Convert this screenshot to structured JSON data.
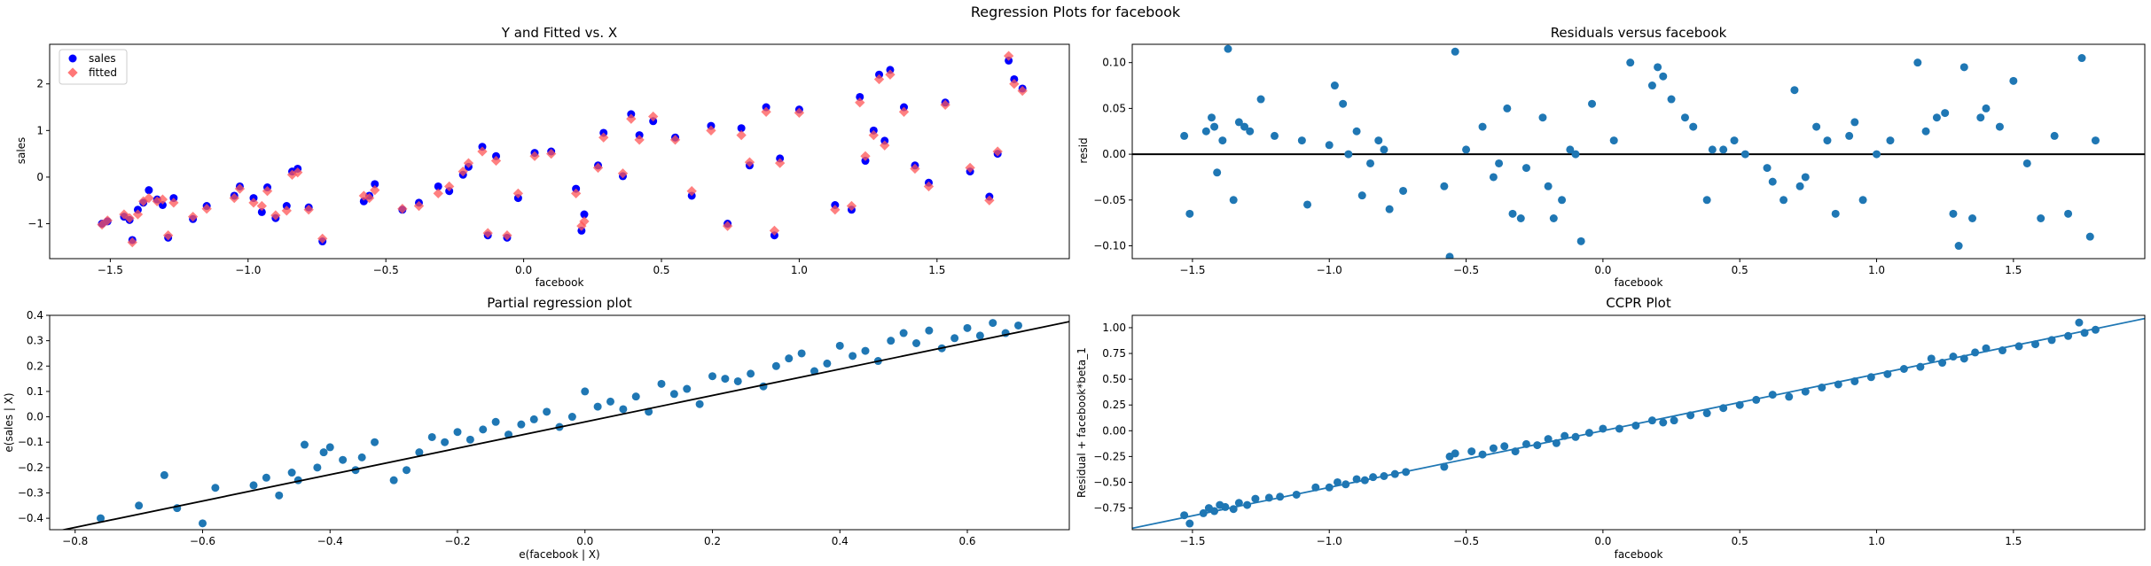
{
  "figure": {
    "suptitle": "Regression Plots for facebook",
    "colors": {
      "sales": "#0000ff",
      "fitted": "#ff5555",
      "points": "#1f77b4",
      "line_ccpr": "#1f77b4",
      "line_partial": "#000000",
      "hline": "#000000"
    }
  },
  "chart_data": [
    {
      "id": "fitted",
      "type": "scatter",
      "title": "Y and Fitted vs. X",
      "xlabel": "facebook",
      "ylabel": "sales",
      "xlim": [
        -1.72,
        1.98
      ],
      "ylim": [
        -1.75,
        2.85
      ],
      "xticks": [
        -1.5,
        -1.0,
        -0.5,
        0.0,
        0.5,
        1.0,
        1.5
      ],
      "xtick_labels": [
        "−1.5",
        "−1.0",
        "−0.5",
        "0.0",
        "0.5",
        "1.0",
        "1.5"
      ],
      "yticks": [
        -1,
        0,
        1,
        2
      ],
      "ytick_labels": [
        "−1",
        "0",
        "1",
        "2"
      ],
      "legend": {
        "placement": "upper-left",
        "entries": [
          "sales",
          "fitted"
        ]
      },
      "x": [
        -1.53,
        -1.51,
        -1.45,
        -1.43,
        -1.42,
        -1.4,
        -1.38,
        -1.36,
        -1.33,
        -1.31,
        -1.29,
        -1.27,
        -1.2,
        -1.15,
        -1.05,
        -1.03,
        -0.98,
        -0.95,
        -0.93,
        -0.9,
        -0.86,
        -0.84,
        -0.82,
        -0.78,
        -0.73,
        -0.58,
        -0.56,
        -0.54,
        -0.44,
        -0.38,
        -0.31,
        -0.27,
        -0.22,
        -0.2,
        -0.15,
        -0.13,
        -0.1,
        -0.06,
        -0.02,
        0.04,
        0.1,
        0.19,
        0.21,
        0.22,
        0.27,
        0.29,
        0.36,
        0.39,
        0.42,
        0.47,
        0.55,
        0.61,
        0.68,
        0.74,
        0.79,
        0.82,
        0.88,
        0.91,
        0.93,
        1.0,
        1.13,
        1.19,
        1.22,
        1.24,
        1.27,
        1.29,
        1.31,
        1.33,
        1.38,
        1.42,
        1.47,
        1.53,
        1.62,
        1.69,
        1.72,
        1.76,
        1.78,
        1.81
      ],
      "series": [
        {
          "name": "sales",
          "values": [
            -1.0,
            -0.95,
            -0.85,
            -0.92,
            -1.35,
            -0.7,
            -0.55,
            -0.28,
            -0.48,
            -0.6,
            -1.3,
            -0.45,
            -0.9,
            -0.62,
            -0.4,
            -0.2,
            -0.45,
            -0.75,
            -0.22,
            -0.88,
            -0.62,
            0.12,
            0.18,
            -0.65,
            -1.38,
            -0.52,
            -0.4,
            -0.15,
            -0.7,
            -0.55,
            -0.2,
            -0.3,
            0.05,
            0.22,
            0.65,
            -1.25,
            0.45,
            -1.3,
            -0.45,
            0.52,
            0.55,
            -0.25,
            -1.15,
            -0.8,
            0.25,
            0.95,
            0.02,
            1.35,
            0.9,
            1.2,
            0.85,
            -0.4,
            1.1,
            -1.0,
            1.05,
            0.25,
            1.5,
            -1.25,
            0.4,
            1.45,
            -0.6,
            -0.7,
            1.72,
            0.35,
            1.0,
            2.2,
            0.78,
            2.3,
            1.5,
            0.25,
            -0.12,
            1.6,
            0.12,
            -0.42,
            0.5,
            2.5,
            2.1,
            1.9
          ]
        },
        {
          "name": "fitted",
          "values": [
            -1.02,
            -0.93,
            -0.8,
            -0.88,
            -1.4,
            -0.8,
            -0.52,
            -0.45,
            -0.52,
            -0.48,
            -1.25,
            -0.55,
            -0.85,
            -0.68,
            -0.45,
            -0.25,
            -0.55,
            -0.62,
            -0.3,
            -0.82,
            -0.72,
            0.05,
            0.1,
            -0.7,
            -1.32,
            -0.4,
            -0.45,
            -0.28,
            -0.68,
            -0.62,
            -0.35,
            -0.2,
            0.12,
            0.3,
            0.55,
            -1.2,
            0.35,
            -1.25,
            -0.35,
            0.45,
            0.5,
            -0.35,
            -1.05,
            -0.95,
            0.2,
            0.85,
            0.08,
            1.25,
            0.8,
            1.3,
            0.8,
            -0.3,
            1.0,
            -1.05,
            0.9,
            0.32,
            1.4,
            -1.15,
            0.3,
            1.38,
            -0.7,
            -0.62,
            1.6,
            0.45,
            0.9,
            2.1,
            0.68,
            2.2,
            1.4,
            0.18,
            -0.2,
            1.55,
            0.2,
            -0.5,
            0.55,
            2.6,
            2.0,
            1.85
          ]
        }
      ]
    },
    {
      "id": "resid",
      "type": "scatter",
      "title": "Residuals versus facebook",
      "xlabel": "facebook",
      "ylabel": "resid",
      "xlim": [
        -1.72,
        1.98
      ],
      "ylim": [
        -0.114,
        0.12
      ],
      "xticks": [
        -1.5,
        -1.0,
        -0.5,
        0.0,
        0.5,
        1.0,
        1.5
      ],
      "xtick_labels": [
        "−1.5",
        "−1.0",
        "−0.5",
        "0.0",
        "0.5",
        "1.0",
        "1.5"
      ],
      "yticks": [
        -0.1,
        -0.05,
        0.0,
        0.05,
        0.1
      ],
      "ytick_labels": [
        "−0.10",
        "−0.05",
        "0.00",
        "0.05",
        "0.10"
      ],
      "hline": 0.0,
      "x": [
        -1.53,
        -1.51,
        -1.45,
        -1.43,
        -1.42,
        -1.41,
        -1.39,
        -1.37,
        -1.35,
        -1.33,
        -1.31,
        -1.29,
        -1.25,
        -1.2,
        -1.1,
        -1.08,
        -1.0,
        -0.98,
        -0.95,
        -0.93,
        -0.9,
        -0.88,
        -0.85,
        -0.82,
        -0.8,
        -0.78,
        -0.73,
        -0.58,
        -0.56,
        -0.54,
        -0.5,
        -0.44,
        -0.4,
        -0.38,
        -0.35,
        -0.33,
        -0.3,
        -0.28,
        -0.22,
        -0.2,
        -0.18,
        -0.15,
        -0.12,
        -0.1,
        -0.08,
        -0.04,
        0.04,
        0.1,
        0.18,
        0.2,
        0.22,
        0.25,
        0.3,
        0.33,
        0.38,
        0.4,
        0.44,
        0.48,
        0.52,
        0.6,
        0.62,
        0.66,
        0.7,
        0.72,
        0.74,
        0.78,
        0.82,
        0.85,
        0.9,
        0.92,
        0.95,
        1.0,
        1.05,
        1.15,
        1.18,
        1.22,
        1.25,
        1.28,
        1.3,
        1.32,
        1.35,
        1.38,
        1.4,
        1.45,
        1.5,
        1.55,
        1.6,
        1.65,
        1.7,
        1.75,
        1.78,
        1.8
      ],
      "y": [
        0.02,
        -0.065,
        0.025,
        0.04,
        0.03,
        -0.02,
        0.015,
        0.115,
        -0.05,
        0.035,
        0.03,
        0.025,
        0.06,
        0.02,
        0.015,
        -0.055,
        0.01,
        0.075,
        0.055,
        0.0,
        0.025,
        -0.045,
        -0.01,
        0.015,
        0.005,
        -0.06,
        -0.04,
        -0.035,
        -0.112,
        0.112,
        0.005,
        0.03,
        -0.025,
        -0.01,
        0.05,
        -0.065,
        -0.07,
        -0.015,
        0.04,
        -0.035,
        -0.07,
        -0.05,
        0.005,
        0.0,
        -0.095,
        0.055,
        0.015,
        0.1,
        0.075,
        0.095,
        0.085,
        0.06,
        0.04,
        0.03,
        -0.05,
        0.005,
        0.005,
        0.015,
        0.0,
        -0.015,
        -0.03,
        -0.05,
        0.07,
        -0.035,
        -0.025,
        0.03,
        0.015,
        -0.065,
        0.02,
        0.035,
        -0.05,
        0.0,
        0.015,
        0.1,
        0.025,
        0.04,
        0.045,
        -0.065,
        -0.1,
        0.095,
        -0.07,
        0.04,
        0.05,
        0.03,
        0.08,
        -0.01,
        -0.07,
        0.02,
        -0.065,
        0.105,
        -0.09,
        0.015
      ]
    },
    {
      "id": "partial",
      "type": "scatter",
      "title": "Partial regression plot",
      "xlabel": "e(facebook | X)",
      "ylabel": "e(sales | X)",
      "xlim": [
        -0.84,
        0.76
      ],
      "ylim": [
        -0.445,
        0.4
      ],
      "xticks": [
        -0.8,
        -0.6,
        -0.4,
        -0.2,
        0.0,
        0.2,
        0.4,
        0.6
      ],
      "xtick_labels": [
        "−0.8",
        "−0.6",
        "−0.4",
        "−0.2",
        "0.0",
        "0.2",
        "0.4",
        "0.6"
      ],
      "yticks": [
        -0.4,
        -0.3,
        -0.2,
        -0.1,
        0.0,
        0.1,
        0.2,
        0.3,
        0.4
      ],
      "ytick_labels": [
        "−0.4",
        "−0.3",
        "−0.2",
        "−0.1",
        "0.0",
        "0.1",
        "0.2",
        "0.3",
        "0.4"
      ],
      "fit_line": {
        "slope": 0.52,
        "intercept": -0.02
      },
      "x": [
        -0.76,
        -0.7,
        -0.66,
        -0.64,
        -0.6,
        -0.58,
        -0.52,
        -0.5,
        -0.48,
        -0.46,
        -0.45,
        -0.44,
        -0.42,
        -0.41,
        -0.4,
        -0.38,
        -0.36,
        -0.35,
        -0.33,
        -0.3,
        -0.28,
        -0.26,
        -0.24,
        -0.22,
        -0.2,
        -0.18,
        -0.16,
        -0.14,
        -0.12,
        -0.1,
        -0.08,
        -0.06,
        -0.04,
        -0.02,
        0.0,
        0.02,
        0.04,
        0.06,
        0.08,
        0.1,
        0.12,
        0.14,
        0.16,
        0.18,
        0.2,
        0.22,
        0.24,
        0.26,
        0.28,
        0.3,
        0.32,
        0.34,
        0.36,
        0.38,
        0.4,
        0.42,
        0.44,
        0.46,
        0.48,
        0.5,
        0.52,
        0.54,
        0.56,
        0.58,
        0.6,
        0.62,
        0.64,
        0.66,
        0.68
      ],
      "y": [
        -0.4,
        -0.35,
        -0.23,
        -0.36,
        -0.42,
        -0.28,
        -0.27,
        -0.24,
        -0.31,
        -0.22,
        -0.25,
        -0.11,
        -0.2,
        -0.14,
        -0.12,
        -0.17,
        -0.21,
        -0.16,
        -0.1,
        -0.25,
        -0.21,
        -0.14,
        -0.08,
        -0.1,
        -0.06,
        -0.09,
        -0.05,
        -0.02,
        -0.07,
        -0.03,
        -0.01,
        0.02,
        -0.04,
        0.0,
        0.1,
        0.04,
        0.06,
        0.03,
        0.08,
        0.02,
        0.13,
        0.09,
        0.11,
        0.05,
        0.16,
        0.15,
        0.14,
        0.17,
        0.12,
        0.2,
        0.23,
        0.25,
        0.18,
        0.21,
        0.28,
        0.24,
        0.26,
        0.22,
        0.3,
        0.33,
        0.29,
        0.34,
        0.27,
        0.31,
        0.35,
        0.32,
        0.37,
        0.33,
        0.36
      ]
    },
    {
      "id": "ccpr",
      "type": "scatter",
      "title": "CCPR Plot",
      "xlabel": "facebook",
      "ylabel": "Residual + facebook*beta_1",
      "xlim": [
        -1.72,
        1.98
      ],
      "ylim": [
        -0.96,
        1.12
      ],
      "xticks": [
        -1.5,
        -1.0,
        -0.5,
        0.0,
        0.5,
        1.0,
        1.5
      ],
      "xtick_labels": [
        "−1.5",
        "−1.0",
        "−0.5",
        "0.0",
        "0.5",
        "1.0",
        "1.5"
      ],
      "yticks": [
        -0.75,
        -0.5,
        -0.25,
        0.0,
        0.25,
        0.5,
        0.75,
        1.0
      ],
      "ytick_labels": [
        "−0.75",
        "−0.50",
        "−0.25",
        "0.00",
        "0.25",
        "0.50",
        "0.75",
        "1.00"
      ],
      "fit_line": {
        "slope": 0.55,
        "intercept": 0.0
      },
      "x": [
        -1.53,
        -1.51,
        -1.46,
        -1.44,
        -1.42,
        -1.4,
        -1.38,
        -1.35,
        -1.33,
        -1.3,
        -1.27,
        -1.22,
        -1.18,
        -1.12,
        -1.05,
        -1.0,
        -0.97,
        -0.94,
        -0.9,
        -0.87,
        -0.84,
        -0.8,
        -0.76,
        -0.72,
        -0.58,
        -0.56,
        -0.54,
        -0.48,
        -0.44,
        -0.4,
        -0.36,
        -0.32,
        -0.28,
        -0.24,
        -0.2,
        -0.17,
        -0.14,
        -0.1,
        -0.05,
        0.0,
        0.06,
        0.12,
        0.18,
        0.22,
        0.26,
        0.32,
        0.38,
        0.44,
        0.5,
        0.56,
        0.62,
        0.68,
        0.74,
        0.8,
        0.86,
        0.92,
        0.98,
        1.04,
        1.1,
        1.16,
        1.2,
        1.24,
        1.28,
        1.32,
        1.36,
        1.4,
        1.46,
        1.52,
        1.58,
        1.64,
        1.7,
        1.74,
        1.76,
        1.8
      ],
      "y": [
        -0.82,
        -0.9,
        -0.8,
        -0.75,
        -0.78,
        -0.72,
        -0.74,
        -0.76,
        -0.7,
        -0.72,
        -0.66,
        -0.65,
        -0.64,
        -0.62,
        -0.55,
        -0.55,
        -0.5,
        -0.52,
        -0.47,
        -0.48,
        -0.45,
        -0.44,
        -0.42,
        -0.4,
        -0.35,
        -0.25,
        -0.22,
        -0.2,
        -0.23,
        -0.17,
        -0.15,
        -0.2,
        -0.13,
        -0.14,
        -0.08,
        -0.12,
        -0.05,
        -0.06,
        -0.02,
        0.02,
        0.02,
        0.05,
        0.1,
        0.08,
        0.1,
        0.15,
        0.17,
        0.22,
        0.25,
        0.3,
        0.35,
        0.33,
        0.38,
        0.42,
        0.45,
        0.48,
        0.52,
        0.55,
        0.6,
        0.62,
        0.7,
        0.66,
        0.72,
        0.7,
        0.76,
        0.8,
        0.78,
        0.82,
        0.84,
        0.88,
        0.92,
        1.05,
        0.95,
        0.98
      ]
    }
  ]
}
